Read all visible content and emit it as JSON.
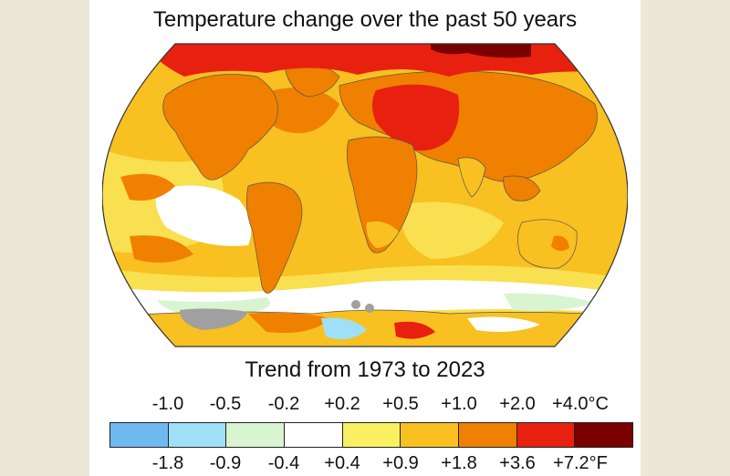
{
  "title": "Temperature change over the past 50 years",
  "subtitle": "Trend from 1973 to 2023",
  "legend": {
    "celsius_labels": [
      "-1.0",
      "-0.5",
      "-0.2",
      "+0.2",
      "+0.5",
      "+1.0",
      "+2.0",
      "+4.0°C"
    ],
    "fahrenheit_labels": [
      "-1.8",
      "-0.9",
      "-0.4",
      "+0.4",
      "+0.9",
      "+1.8",
      "+3.6",
      "+7.2°F"
    ],
    "colors": [
      "#6fb8f0",
      "#9fe0f8",
      "#d8f4d0",
      "#ffffff",
      "#f8f060",
      "#f8c020",
      "#f08000",
      "#e82010",
      "#7a0000"
    ]
  },
  "colors": {
    "background": "#ece8d8",
    "panel": "#ffffff",
    "no_data": "#a0a0a0"
  }
}
